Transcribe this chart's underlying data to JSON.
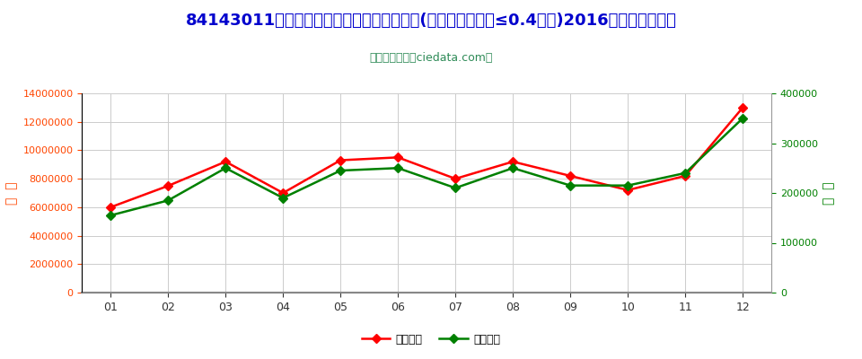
{
  "title": "84143011小型电驱动冷藏或冷冻箱用压缩机(电动机额定功率≤0.4千瓦)2016年进口月度走势",
  "subtitle": "进出口服务网（ciedata.com）",
  "months": [
    "01",
    "02",
    "03",
    "04",
    "05",
    "06",
    "07",
    "08",
    "09",
    "10",
    "11",
    "12"
  ],
  "import_usd": [
    6000000,
    7500000,
    9200000,
    7000000,
    9300000,
    9500000,
    8000000,
    9200000,
    8200000,
    7200000,
    8200000,
    13000000
  ],
  "import_qty": [
    155000,
    185000,
    250000,
    190000,
    245000,
    250000,
    210000,
    250000,
    215000,
    215000,
    240000,
    350000
  ],
  "left_ylim": [
    0,
    14000000
  ],
  "right_ylim": [
    0,
    400000
  ],
  "left_yticks": [
    0,
    2000000,
    4000000,
    6000000,
    8000000,
    10000000,
    12000000,
    14000000
  ],
  "right_yticks": [
    0,
    100000,
    200000,
    300000,
    400000
  ],
  "left_ylabel": "金  额",
  "right_ylabel": "数  量",
  "legend_usd": "进口美元",
  "legend_qty": "进口数量",
  "line_color_usd": "#FF0000",
  "line_color_qty": "#008000",
  "bg_color": "#FFFFFF",
  "plot_bg_color": "#FFFFFF",
  "grid_color": "#CCCCCC",
  "title_color": "#0000CD",
  "subtitle_color": "#2E8B57",
  "left_tick_color": "#FF4500",
  "right_tick_color": "#008000",
  "title_fontsize": 13,
  "subtitle_fontsize": 9
}
